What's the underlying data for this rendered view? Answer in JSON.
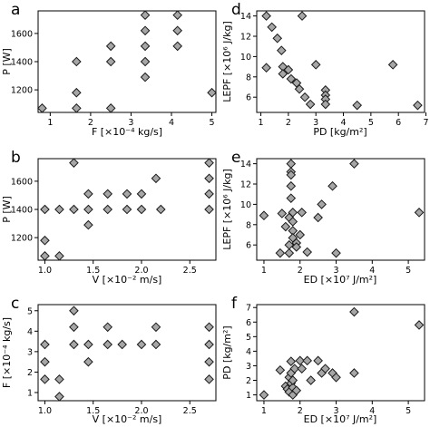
{
  "chart_data": [
    {
      "type": "scatter",
      "panel": "a",
      "xlabel": "F [×10⁻⁴ kg/s]",
      "ylabel": "P [W]",
      "xlim": [
        0.7,
        5.1
      ],
      "ylim": [
        1040,
        1760
      ],
      "xticks": [
        1,
        2,
        3,
        4,
        5
      ],
      "yticks": [
        1200,
        1400,
        1600
      ],
      "points": [
        [
          0.8,
          1070
        ],
        [
          1.65,
          1070
        ],
        [
          1.65,
          1180
        ],
        [
          1.65,
          1400
        ],
        [
          2.5,
          1070
        ],
        [
          2.5,
          1400
        ],
        [
          2.5,
          1510
        ],
        [
          3.35,
          1290
        ],
        [
          3.35,
          1400
        ],
        [
          3.35,
          1510
        ],
        [
          3.35,
          1620
        ],
        [
          3.35,
          1730
        ],
        [
          4.15,
          1510
        ],
        [
          4.15,
          1620
        ],
        [
          4.15,
          1730
        ],
        [
          5.0,
          1180
        ]
      ]
    },
    {
      "type": "scatter",
      "panel": "d",
      "xlabel": "PD [kg/m²]",
      "ylabel": "LEPF [×10⁶ J/kg]",
      "xlim": [
        0.85,
        6.95
      ],
      "ylim": [
        4.5,
        14.5
      ],
      "xticks": [
        1,
        2,
        3,
        4,
        5,
        6,
        7
      ],
      "yticks": [
        6,
        8,
        10,
        12,
        14
      ],
      "points": [
        [
          1.2,
          14
        ],
        [
          1.2,
          8.9
        ],
        [
          1.4,
          12.9
        ],
        [
          1.6,
          11.8
        ],
        [
          1.75,
          10.6
        ],
        [
          1.8,
          9
        ],
        [
          1.8,
          8.3
        ],
        [
          2.0,
          8.7
        ],
        [
          2.1,
          7.8
        ],
        [
          2.3,
          7.4
        ],
        [
          2.4,
          6.8
        ],
        [
          2.6,
          6.0
        ],
        [
          2.5,
          14
        ],
        [
          2.8,
          5.3
        ],
        [
          3.0,
          9.2
        ],
        [
          3.35,
          6.7
        ],
        [
          3.35,
          6.2
        ],
        [
          3.35,
          5.8
        ],
        [
          3.35,
          5.3
        ],
        [
          4.5,
          5.2
        ],
        [
          5.8,
          9.2
        ],
        [
          6.7,
          5.2
        ]
      ]
    },
    {
      "type": "scatter",
      "panel": "b",
      "xlabel": "V [×10⁻² m/s]",
      "ylabel": "P [W]",
      "xlim": [
        0.93,
        2.77
      ],
      "ylim": [
        1040,
        1760
      ],
      "xticks": [
        1.0,
        1.5,
        2.0,
        2.5
      ],
      "yticks": [
        1200,
        1400,
        1600
      ],
      "points": [
        [
          1.0,
          1070
        ],
        [
          1.0,
          1180
        ],
        [
          1.0,
          1400
        ],
        [
          1.15,
          1070
        ],
        [
          1.15,
          1400
        ],
        [
          1.3,
          1400
        ],
        [
          1.3,
          1730
        ],
        [
          1.45,
          1290
        ],
        [
          1.45,
          1400
        ],
        [
          1.45,
          1510
        ],
        [
          1.65,
          1400
        ],
        [
          1.65,
          1510
        ],
        [
          1.85,
          1400
        ],
        [
          1.85,
          1510
        ],
        [
          2.0,
          1400
        ],
        [
          2.0,
          1510
        ],
        [
          2.15,
          1620
        ],
        [
          2.2,
          1400
        ],
        [
          2.7,
          1400
        ],
        [
          2.7,
          1510
        ],
        [
          2.7,
          1620
        ],
        [
          2.7,
          1730
        ]
      ]
    },
    {
      "type": "scatter",
      "panel": "e",
      "xlabel": "ED [×10⁷ J/m²]",
      "ylabel": "LEPF [×10⁶ J/kg]",
      "xlim": [
        0.8,
        5.45
      ],
      "ylim": [
        4.5,
        14.5
      ],
      "xticks": [
        1,
        2,
        3,
        4,
        5
      ],
      "yticks": [
        6,
        8,
        10,
        12,
        14
      ],
      "points": [
        [
          1.0,
          8.9
        ],
        [
          1.45,
          5.2
        ],
        [
          1.5,
          9.1
        ],
        [
          1.6,
          7.8
        ],
        [
          1.7,
          8.7
        ],
        [
          1.7,
          6.0
        ],
        [
          1.7,
          5.2
        ],
        [
          1.75,
          14
        ],
        [
          1.75,
          13.2
        ],
        [
          1.75,
          12.9
        ],
        [
          1.75,
          11.8
        ],
        [
          1.75,
          10.6
        ],
        [
          1.8,
          9.2
        ],
        [
          1.8,
          8.3
        ],
        [
          1.8,
          7.4
        ],
        [
          1.8,
          6.7
        ],
        [
          1.9,
          6.2
        ],
        [
          1.9,
          5.8
        ],
        [
          2.0,
          7.0
        ],
        [
          2.05,
          9.2
        ],
        [
          2.2,
          5.3
        ],
        [
          2.5,
          8.7
        ],
        [
          2.6,
          10.0
        ],
        [
          2.9,
          11.8
        ],
        [
          3.0,
          5.2
        ],
        [
          3.5,
          14
        ],
        [
          5.3,
          9.2
        ]
      ]
    },
    {
      "type": "scatter",
      "panel": "c",
      "xlabel": "V [×10⁻² m/s]",
      "ylabel": "F [×10⁻⁴ kg/s]",
      "xlim": [
        0.93,
        2.77
      ],
      "ylim": [
        0.6,
        5.3
      ],
      "xticks": [
        1.0,
        1.5,
        2.0,
        2.5
      ],
      "yticks": [
        1,
        2,
        3,
        4,
        5
      ],
      "points": [
        [
          1.0,
          1.65
        ],
        [
          1.0,
          2.5
        ],
        [
          1.0,
          3.35
        ],
        [
          1.15,
          0.8
        ],
        [
          1.15,
          1.65
        ],
        [
          1.3,
          3.35
        ],
        [
          1.3,
          4.2
        ],
        [
          1.3,
          5.0
        ],
        [
          1.45,
          2.5
        ],
        [
          1.45,
          3.35
        ],
        [
          1.65,
          3.35
        ],
        [
          1.65,
          4.2
        ],
        [
          1.8,
          3.35
        ],
        [
          2.0,
          3.35
        ],
        [
          2.15,
          3.35
        ],
        [
          2.15,
          4.2
        ],
        [
          2.7,
          1.65
        ],
        [
          2.7,
          2.5
        ],
        [
          2.7,
          3.35
        ],
        [
          2.7,
          4.2
        ]
      ]
    },
    {
      "type": "scatter",
      "panel": "f",
      "xlabel": "ED [×10⁷ J/m²]",
      "ylabel": "PD [kg/m²]",
      "xlim": [
        0.8,
        5.45
      ],
      "ylim": [
        0.6,
        7.2
      ],
      "xticks": [
        1,
        2,
        3,
        4,
        5
      ],
      "yticks": [
        1,
        2,
        3,
        4,
        5,
        6,
        7
      ],
      "points": [
        [
          1.0,
          1.0
        ],
        [
          1.45,
          2.7
        ],
        [
          1.6,
          1.6
        ],
        [
          1.65,
          1.4
        ],
        [
          1.7,
          1.2
        ],
        [
          1.7,
          2.2
        ],
        [
          1.75,
          1.8
        ],
        [
          1.75,
          2.5
        ],
        [
          1.75,
          3.3
        ],
        [
          1.8,
          1.0
        ],
        [
          1.8,
          1.5
        ],
        [
          1.8,
          2.0
        ],
        [
          1.85,
          2.8
        ],
        [
          1.9,
          1.3
        ],
        [
          2.0,
          3.35
        ],
        [
          2.05,
          2.8
        ],
        [
          2.2,
          3.35
        ],
        [
          2.3,
          2.0
        ],
        [
          2.5,
          3.35
        ],
        [
          2.6,
          2.5
        ],
        [
          2.7,
          2.8
        ],
        [
          2.9,
          2.5
        ],
        [
          3.0,
          2.2
        ],
        [
          3.5,
          2.5
        ],
        [
          3.5,
          6.7
        ],
        [
          5.3,
          5.8
        ]
      ]
    }
  ]
}
